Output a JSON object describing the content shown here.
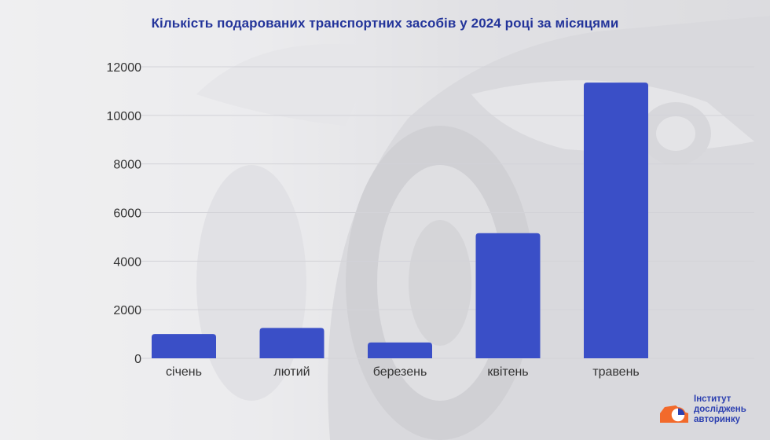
{
  "title": "Кількість подарованих транспортних засобів у 2024 році за місяцями",
  "colors": {
    "bar": "#3a4fc7",
    "title": "#23349a",
    "grid": "#d3d3d8",
    "text": "#333333",
    "logo_orange": "#f26a2b",
    "logo_text": "#2b3fb0"
  },
  "logo": {
    "icon": "car-pie-logo-icon",
    "lines": [
      "Інститут",
      "досліджень",
      "авторинку"
    ]
  },
  "chart_data": {
    "type": "bar",
    "title": "Кількість подарованих транспортних засобів у 2024 році за місяцями",
    "categories": [
      "січень",
      "лютий",
      "березень",
      "квітень",
      "травень"
    ],
    "values": [
      1000,
      1250,
      650,
      5150,
      11350
    ],
    "ylim": [
      0,
      12000
    ],
    "yticks": [
      0,
      2000,
      4000,
      6000,
      8000,
      10000,
      12000
    ],
    "grid": true,
    "xlabel": "",
    "ylabel": ""
  }
}
